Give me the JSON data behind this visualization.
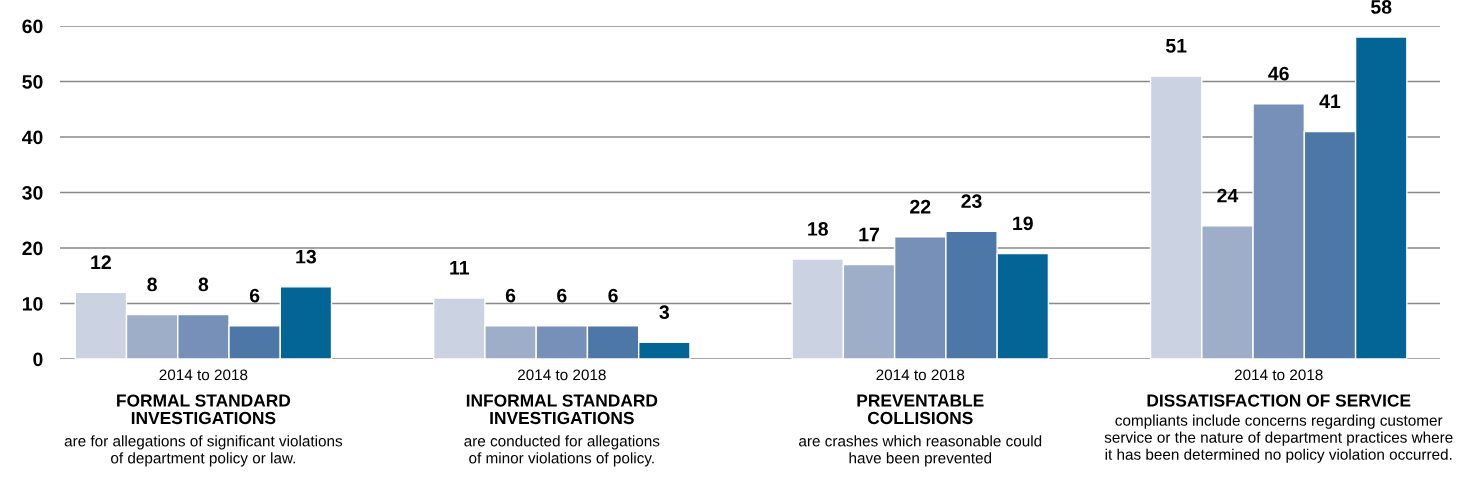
{
  "chart_data": {
    "type": "bar",
    "categories": [
      "FORMAL STANDARD\nINVESTIGATIONS",
      "INFORMAL STANDARD\nINVESTIGATIONS",
      "PREVENTABLE\nCOLLISIONS",
      "DISSATISFACTION OF SERVICE"
    ],
    "series": [
      {
        "color": "#cbd2e2",
        "values": [
          12,
          11,
          18,
          51
        ],
        "value_labels": [
          "12",
          "11",
          "18",
          "51"
        ]
      },
      {
        "color": "#9eaec9",
        "values": [
          8,
          6,
          17,
          24
        ],
        "value_labels": [
          "8",
          "6",
          "17",
          "24"
        ]
      },
      {
        "color": "#7690b7",
        "values": [
          8,
          6,
          22,
          46
        ],
        "value_labels": [
          "8",
          "6",
          "22",
          "46"
        ]
      },
      {
        "color": "#4c77a7",
        "values": [
          6,
          6,
          23,
          41
        ],
        "value_labels": [
          "6",
          "6",
          "23",
          "41"
        ]
      },
      {
        "color": "#036596",
        "values": [
          13,
          3,
          19,
          58
        ],
        "value_labels": [
          "13",
          "3",
          "19",
          "58"
        ]
      }
    ],
    "ylim": [
      0,
      60
    ],
    "yticks": [
      0,
      10,
      20,
      30,
      40,
      50,
      60
    ],
    "grid": "y",
    "legend": false,
    "annotations": [
      "2014 to 2018",
      "2014 to 2018",
      "2014 to 2018",
      "2014 to 2018",
      "are for allegations of significant violations\nof department policy or law.",
      "are conducted for allegations\nof minor violations of policy.",
      "are crashes which reasonable could\nhave been prevented",
      "compliants include concerns regarding customer\nservice or the nature of department practices where\nit has been determined no policy violation occurred."
    ]
  }
}
